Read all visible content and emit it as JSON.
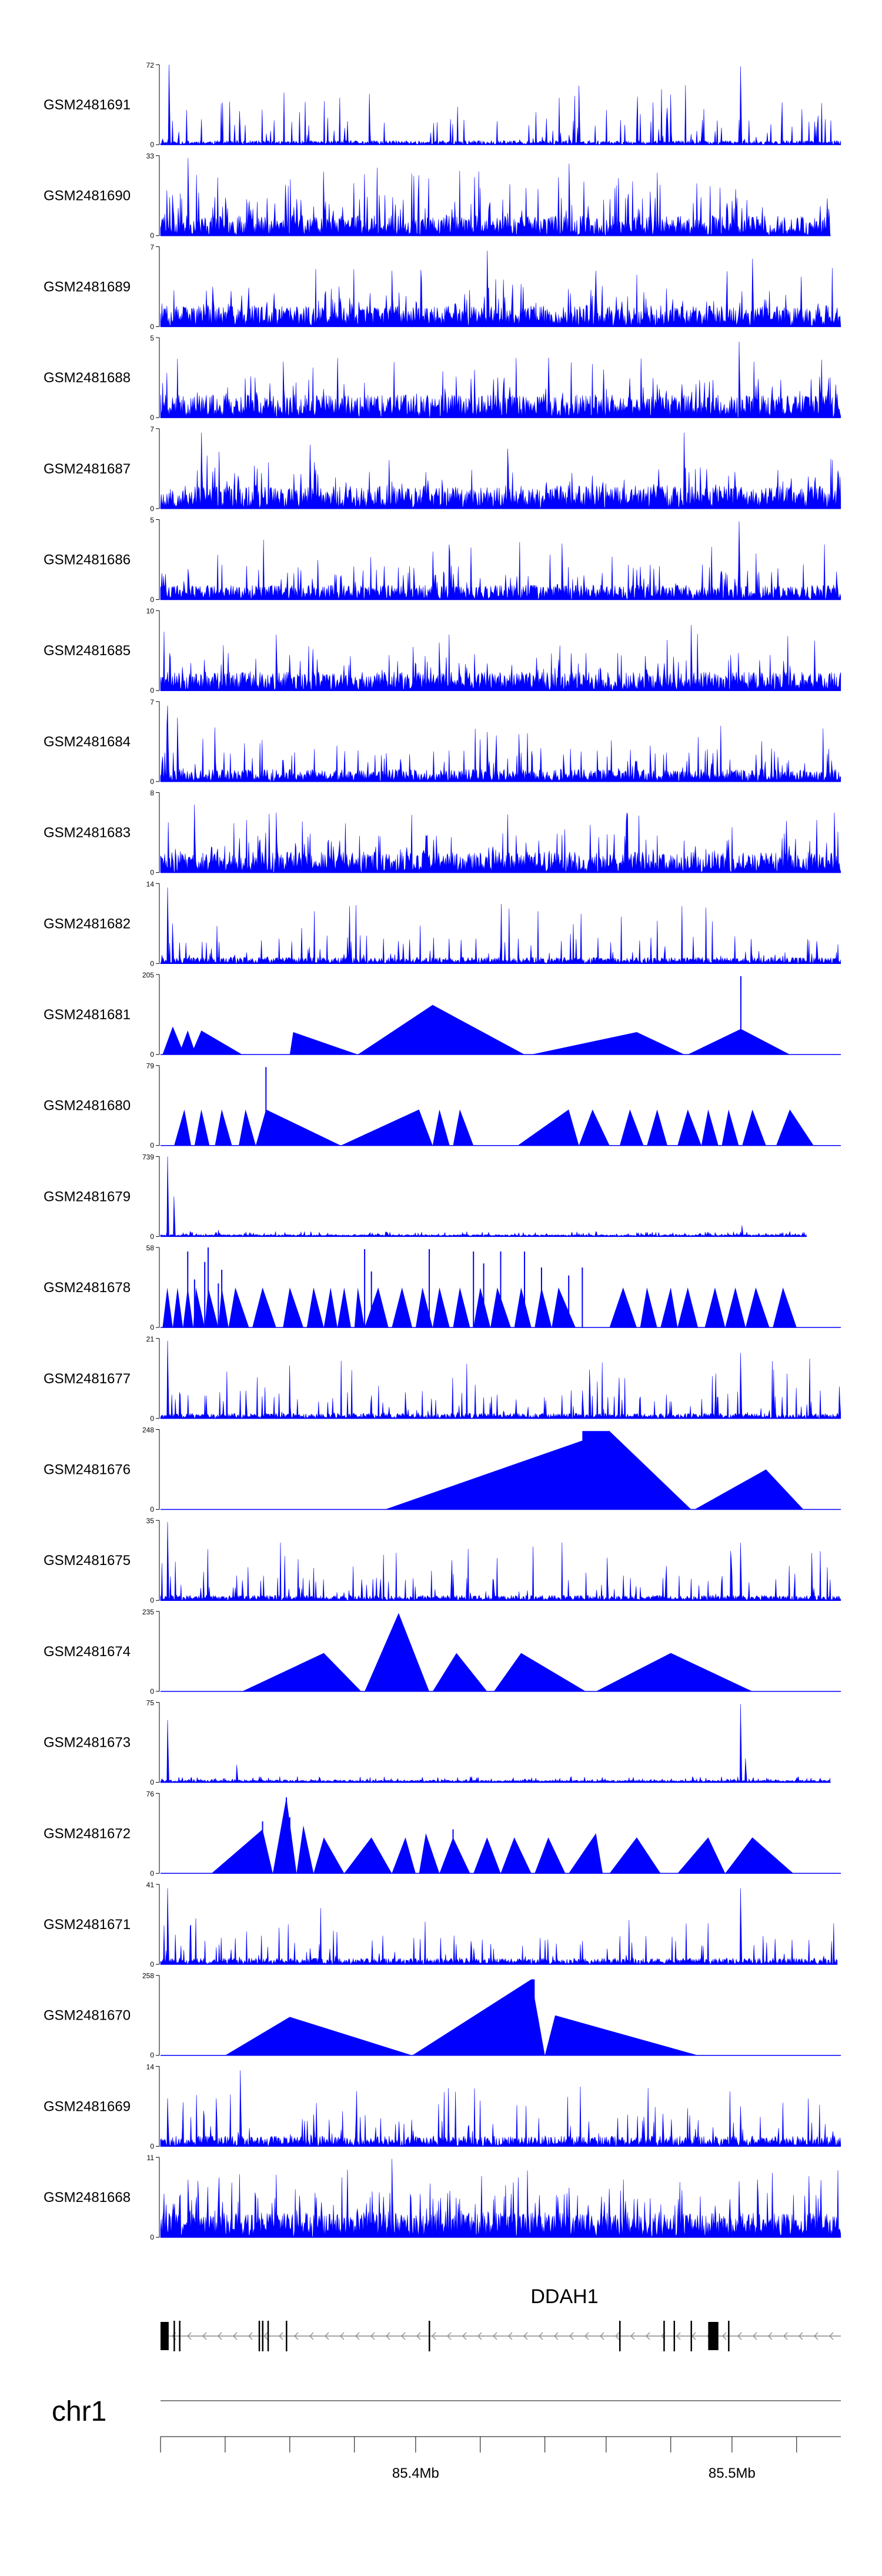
{
  "chart_data": {
    "type": "area",
    "description_units": "normalized genomic position (0 = track start, 1 = track end) vs read coverage",
    "fill_color": "#0000ff",
    "tracks": [
      {
        "name": "GSM2481691",
        "ymax": 72,
        "ymin": 0,
        "style": "dense",
        "seed": 11,
        "base": 0.04,
        "peaks": [
          [
            0.012,
            1.0
          ],
          [
            0.116,
            0.42
          ],
          [
            0.853,
            0.98
          ],
          [
            0.6,
            0.12
          ]
        ]
      },
      {
        "name": "GSM2481690",
        "ymax": 33,
        "ymin": 0,
        "style": "dense-spiky",
        "seed": 23,
        "base": 0.18,
        "end": 0.985,
        "peaks": [
          [
            0.04,
            0.97
          ],
          [
            0.24,
            0.8
          ],
          [
            0.6,
            0.9
          ],
          [
            0.72,
            0.55
          ],
          [
            0.845,
            0.58
          ]
        ]
      },
      {
        "name": "GSM2481689",
        "ymax": 7,
        "ymin": 0,
        "style": "dense",
        "seed": 37,
        "base": 0.2,
        "peaks": [
          [
            0.48,
            0.95
          ],
          [
            0.87,
            0.85
          ],
          [
            0.64,
            0.7
          ],
          [
            0.34,
            0.7
          ]
        ]
      },
      {
        "name": "GSM2481688",
        "ymax": 5,
        "ymin": 0,
        "style": "dense",
        "seed": 41,
        "base": 0.22,
        "peaks": [
          [
            0.85,
            0.95
          ],
          [
            0.57,
            0.75
          ],
          [
            0.18,
            0.7
          ]
        ]
      },
      {
        "name": "GSM2481687",
        "ymax": 7,
        "ymin": 0,
        "style": "dense",
        "seed": 53,
        "base": 0.22,
        "peaks": [
          [
            0.06,
            0.95
          ],
          [
            0.77,
            0.95
          ],
          [
            0.22,
            0.8
          ],
          [
            0.51,
            0.75
          ]
        ]
      },
      {
        "name": "GSM2481686",
        "ymax": 5,
        "ymin": 0,
        "style": "dense",
        "seed": 61,
        "base": 0.14,
        "peaks": [
          [
            0.85,
            0.98
          ],
          [
            0.59,
            0.7
          ],
          [
            0.4,
            0.6
          ]
        ]
      },
      {
        "name": "GSM2481685",
        "ymax": 10,
        "ymin": 0,
        "style": "dense",
        "seed": 71,
        "base": 0.18,
        "peaks": [
          [
            0.78,
            0.82
          ],
          [
            0.17,
            0.7
          ],
          [
            0.41,
            0.6
          ]
        ]
      },
      {
        "name": "GSM2481684",
        "ymax": 7,
        "ymin": 0,
        "style": "dense",
        "seed": 79,
        "base": 0.12,
        "peaks": [
          [
            0.01,
            0.95
          ],
          [
            0.025,
            0.8
          ],
          [
            0.48,
            0.62
          ],
          [
            0.72,
            0.45
          ]
        ]
      },
      {
        "name": "GSM2481683",
        "ymax": 8,
        "ymin": 0,
        "style": "dense",
        "seed": 83,
        "base": 0.2,
        "peaks": [
          [
            0.05,
            0.85
          ],
          [
            0.17,
            0.75
          ],
          [
            0.99,
            0.75
          ]
        ]
      },
      {
        "name": "GSM2481682",
        "ymax": 14,
        "ymin": 0,
        "style": "dense",
        "seed": 97,
        "base": 0.06,
        "peaks": [
          [
            0.01,
            0.95
          ],
          [
            0.018,
            0.5
          ],
          [
            0.35,
            0.28
          ]
        ]
      },
      {
        "name": "GSM2481681",
        "ymax": 205,
        "ymin": 0,
        "style": "triangles",
        "segments": [
          [
            0.003,
            0.018,
            0.035,
            0.35
          ],
          [
            0.027,
            0.04,
            0.052,
            0.3
          ],
          [
            0.045,
            0.06,
            0.12,
            0.3
          ],
          [
            0.19,
            0.195,
            0.29,
            0.28
          ],
          [
            0.29,
            0.4,
            0.535,
            0.62
          ],
          [
            0.545,
            0.7,
            0.77,
            0.28
          ],
          [
            0.775,
            0.853,
            0.925,
            0.32
          ]
        ],
        "spikes": [
          [
            0.853,
            0.98
          ]
        ]
      },
      {
        "name": "GSM2481680",
        "ymax": 79,
        "ymin": 0,
        "style": "triangles",
        "segments": [
          [
            0.02,
            0.035,
            0.045,
            0.45
          ],
          [
            0.05,
            0.06,
            0.072,
            0.45
          ],
          [
            0.08,
            0.09,
            0.105,
            0.45
          ],
          [
            0.115,
            0.125,
            0.14,
            0.45
          ],
          [
            0.14,
            0.155,
            0.265,
            0.45
          ],
          [
            0.265,
            0.38,
            0.4,
            0.45
          ],
          [
            0.4,
            0.41,
            0.425,
            0.45
          ],
          [
            0.43,
            0.44,
            0.46,
            0.45
          ],
          [
            0.525,
            0.6,
            0.615,
            0.45
          ],
          [
            0.615,
            0.635,
            0.66,
            0.45
          ],
          [
            0.675,
            0.69,
            0.71,
            0.45
          ],
          [
            0.715,
            0.73,
            0.745,
            0.45
          ],
          [
            0.76,
            0.775,
            0.795,
            0.45
          ],
          [
            0.795,
            0.805,
            0.82,
            0.45
          ],
          [
            0.825,
            0.835,
            0.85,
            0.45
          ],
          [
            0.855,
            0.87,
            0.89,
            0.45
          ],
          [
            0.905,
            0.925,
            0.96,
            0.45
          ]
        ],
        "spikes": [
          [
            0.155,
            0.98
          ]
        ]
      },
      {
        "name": "GSM2481679",
        "ymax": 739,
        "ymin": 0,
        "style": "sparse",
        "seed": 113,
        "base": 0.025,
        "end": 0.95,
        "peaks": [
          [
            0.01,
            1.0
          ],
          [
            0.02,
            0.5
          ],
          [
            0.085,
            0.08
          ],
          [
            0.855,
            0.14
          ]
        ]
      },
      {
        "name": "GSM2481678",
        "ymax": 58,
        "ymin": 0,
        "style": "triangles",
        "segments": [
          [
            0.003,
            0.01,
            0.018,
            0.5
          ],
          [
            0.018,
            0.025,
            0.033,
            0.5
          ],
          [
            0.033,
            0.04,
            0.048,
            0.5
          ],
          [
            0.048,
            0.052,
            0.065,
            0.5
          ],
          [
            0.065,
            0.07,
            0.085,
            0.5
          ],
          [
            0.085,
            0.09,
            0.1,
            0.5
          ],
          [
            0.1,
            0.11,
            0.13,
            0.5
          ],
          [
            0.135,
            0.15,
            0.17,
            0.5
          ],
          [
            0.18,
            0.19,
            0.21,
            0.5
          ],
          [
            0.215,
            0.225,
            0.24,
            0.5
          ],
          [
            0.24,
            0.25,
            0.26,
            0.5
          ],
          [
            0.26,
            0.27,
            0.28,
            0.5
          ],
          [
            0.285,
            0.29,
            0.3,
            0.5
          ],
          [
            0.3,
            0.32,
            0.335,
            0.5
          ],
          [
            0.34,
            0.355,
            0.37,
            0.5
          ],
          [
            0.375,
            0.385,
            0.4,
            0.5
          ],
          [
            0.4,
            0.41,
            0.425,
            0.5
          ],
          [
            0.43,
            0.44,
            0.455,
            0.5
          ],
          [
            0.46,
            0.47,
            0.485,
            0.5
          ],
          [
            0.485,
            0.495,
            0.515,
            0.5
          ],
          [
            0.52,
            0.53,
            0.545,
            0.5
          ],
          [
            0.55,
            0.56,
            0.575,
            0.5
          ],
          [
            0.575,
            0.585,
            0.61,
            0.5
          ],
          [
            0.66,
            0.68,
            0.7,
            0.5
          ],
          [
            0.705,
            0.715,
            0.73,
            0.5
          ],
          [
            0.735,
            0.75,
            0.76,
            0.5
          ],
          [
            0.76,
            0.775,
            0.79,
            0.5
          ],
          [
            0.8,
            0.815,
            0.83,
            0.5
          ],
          [
            0.83,
            0.845,
            0.86,
            0.5
          ],
          [
            0.86,
            0.875,
            0.895,
            0.5
          ],
          [
            0.9,
            0.915,
            0.935,
            0.5
          ]
        ],
        "spikes": [
          [
            0.04,
            0.95
          ],
          [
            0.05,
            0.6
          ],
          [
            0.065,
            0.82
          ],
          [
            0.07,
            1.0
          ],
          [
            0.085,
            0.55
          ],
          [
            0.09,
            0.72
          ],
          [
            0.3,
            0.98
          ],
          [
            0.31,
            0.7
          ],
          [
            0.395,
            0.98
          ],
          [
            0.46,
            0.95
          ],
          [
            0.475,
            0.8
          ],
          [
            0.5,
            0.95
          ],
          [
            0.535,
            0.95
          ],
          [
            0.56,
            0.75
          ],
          [
            0.6,
            0.65
          ],
          [
            0.62,
            0.75
          ]
        ]
      },
      {
        "name": "GSM2481677",
        "ymax": 21,
        "ymin": 0,
        "style": "dense",
        "seed": 131,
        "base": 0.05,
        "peaks": [
          [
            0.01,
            0.97
          ],
          [
            0.853,
            0.82
          ],
          [
            0.125,
            0.35
          ],
          [
            0.36,
            0.3
          ],
          [
            0.62,
            0.35
          ],
          [
            0.998,
            0.4
          ]
        ]
      },
      {
        "name": "GSM2481676",
        "ymax": 248,
        "ymin": 0,
        "style": "triangles",
        "segments": [
          [
            0.33,
            0.66,
            0.78,
            0.98
          ],
          [
            0.785,
            0.89,
            0.945,
            0.5
          ]
        ],
        "plateaus": [
          [
            0.62,
            0.66,
            0.98
          ]
        ]
      },
      {
        "name": "GSM2481675",
        "ymax": 35,
        "ymin": 0,
        "style": "dense",
        "seed": 151,
        "base": 0.05,
        "peaks": [
          [
            0.01,
            0.98
          ],
          [
            0.853,
            0.72
          ],
          [
            0.12,
            0.25
          ],
          [
            0.49,
            0.25
          ]
        ]
      },
      {
        "name": "GSM2481674",
        "ymax": 235,
        "ymin": 0,
        "style": "triangles",
        "segments": [
          [
            0.12,
            0.24,
            0.295,
            0.48
          ],
          [
            0.3,
            0.35,
            0.395,
            0.98
          ],
          [
            0.4,
            0.435,
            0.48,
            0.48
          ],
          [
            0.49,
            0.53,
            0.625,
            0.48
          ],
          [
            0.64,
            0.75,
            0.87,
            0.48
          ]
        ]
      },
      {
        "name": "GSM2481673",
        "ymax": 75,
        "ymin": 0,
        "style": "sparse",
        "seed": 163,
        "base": 0.03,
        "end": 0.985,
        "peaks": [
          [
            0.01,
            0.78
          ],
          [
            0.853,
            0.98
          ],
          [
            0.112,
            0.22
          ],
          [
            0.86,
            0.3
          ]
        ]
      },
      {
        "name": "GSM2481672",
        "ymax": 76,
        "ymin": 0,
        "style": "triangles",
        "segments": [
          [
            0.075,
            0.15,
            0.165,
            0.55
          ],
          [
            0.165,
            0.185,
            0.2,
            0.95
          ],
          [
            0.2,
            0.21,
            0.225,
            0.6
          ],
          [
            0.225,
            0.24,
            0.27,
            0.45
          ],
          [
            0.27,
            0.31,
            0.34,
            0.45
          ],
          [
            0.34,
            0.36,
            0.375,
            0.45
          ],
          [
            0.38,
            0.39,
            0.41,
            0.5
          ],
          [
            0.41,
            0.43,
            0.455,
            0.45
          ],
          [
            0.46,
            0.48,
            0.5,
            0.45
          ],
          [
            0.5,
            0.52,
            0.545,
            0.45
          ],
          [
            0.55,
            0.57,
            0.595,
            0.45
          ],
          [
            0.6,
            0.64,
            0.65,
            0.5
          ],
          [
            0.66,
            0.7,
            0.735,
            0.45
          ],
          [
            0.76,
            0.805,
            0.83,
            0.45
          ],
          [
            0.83,
            0.87,
            0.93,
            0.45
          ]
        ],
        "spikes": [
          [
            0.15,
            0.65
          ],
          [
            0.185,
            0.95
          ],
          [
            0.19,
            0.7
          ],
          [
            0.43,
            0.55
          ]
        ]
      },
      {
        "name": "GSM2481671",
        "ymax": 41,
        "ymin": 0,
        "style": "dense",
        "seed": 179,
        "base": 0.06,
        "end": 0.995,
        "peaks": [
          [
            0.01,
            0.95
          ],
          [
            0.853,
            0.95
          ],
          [
            0.22,
            0.2
          ],
          [
            0.46,
            0.2
          ]
        ]
      },
      {
        "name": "GSM2481670",
        "ymax": 258,
        "ymin": 0,
        "style": "triangles",
        "segments": [
          [
            0.095,
            0.19,
            0.37,
            0.48
          ],
          [
            0.37,
            0.545,
            0.565,
            0.95
          ],
          [
            0.565,
            0.58,
            0.79,
            0.5
          ]
        ],
        "plateaus": [
          [
            0.545,
            0.55,
            0.95
          ]
        ]
      },
      {
        "name": "GSM2481669",
        "ymax": 14,
        "ymin": 0,
        "style": "dense",
        "seed": 191,
        "base": 0.1,
        "peaks": [
          [
            0.01,
            0.6
          ],
          [
            0.117,
            0.95
          ],
          [
            0.853,
            0.5
          ],
          [
            0.225,
            0.4
          ]
        ]
      },
      {
        "name": "GSM2481668",
        "ymax": 11,
        "ymin": 0,
        "style": "dense-spiky",
        "seed": 199,
        "base": 0.22,
        "peaks": [
          [
            0.34,
            0.98
          ],
          [
            0.85,
            0.7
          ],
          [
            0.04,
            0.72
          ],
          [
            0.6,
            0.62
          ]
        ]
      }
    ],
    "gene": {
      "name": "DDAH1",
      "strand": "-",
      "exons": [
        [
          0.0,
          0.012
        ],
        [
          0.805,
          0.82
        ]
      ],
      "exon_ticks": [
        0.02,
        0.028,
        0.145,
        0.15,
        0.158,
        0.185,
        0.395,
        0.675,
        0.74,
        0.755,
        0.78,
        0.835
      ]
    },
    "x_axis": {
      "chromosome": "chr1",
      "ticks": [
        0.0,
        0.095,
        0.19,
        0.285,
        0.375,
        0.47,
        0.565,
        0.655,
        0.75,
        0.84,
        0.935
      ],
      "labeled_ticks": [
        {
          "pos": 0.375,
          "label": "85.4Mb"
        },
        {
          "pos": 0.84,
          "label": "85.5Mb"
        }
      ]
    }
  }
}
